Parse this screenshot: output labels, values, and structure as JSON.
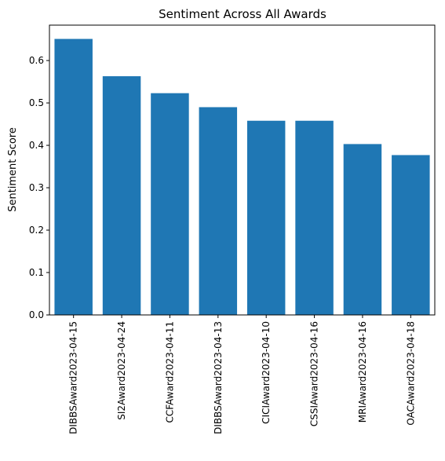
{
  "chart_data": {
    "type": "bar",
    "title": "Sentiment Across All Awards",
    "xlabel": "",
    "ylabel": "Sentiment Score",
    "categories": [
      "DIBBSAward2023-04-15",
      "SI2Award2023-04-24",
      "CCFAward2023-04-11",
      "DIBBSAward2023-04-13",
      "CICIAward2023-04-10",
      "CSSIAward2023-04-16",
      "MRIAward2023-04-16",
      "OACAward2023-04-18"
    ],
    "values": [
      0.651,
      0.563,
      0.523,
      0.49,
      0.458,
      0.458,
      0.403,
      0.377
    ],
    "ylim": [
      0,
      0.6835
    ],
    "yticks": [
      "0.0",
      "0.1",
      "0.2",
      "0.3",
      "0.4",
      "0.5",
      "0.6"
    ],
    "grid": false,
    "bar_color": "#1f77b4"
  }
}
